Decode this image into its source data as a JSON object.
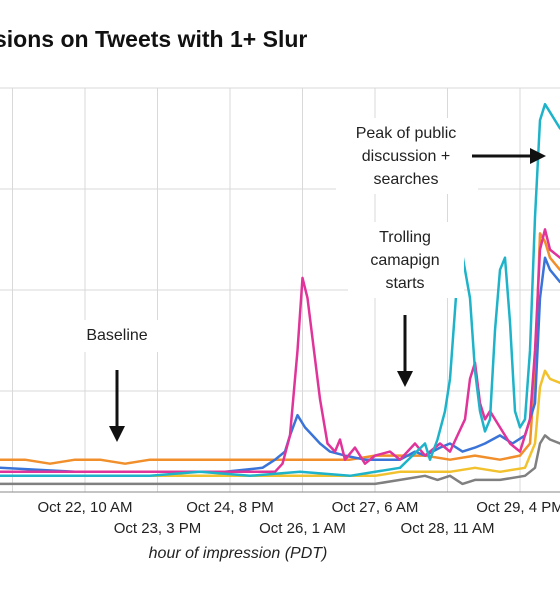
{
  "title": "sions on Tweets with 1+ Slur",
  "chart_data": {
    "type": "line",
    "xlabel": "hour of impression (PDT)",
    "ylabel": "",
    "x_ticks_row1": [
      "Oct 22, 10 AM",
      "Oct 24, 8 PM",
      "Oct 27, 6 AM",
      "Oct 29, 4 PM"
    ],
    "x_ticks_row2": [
      "Oct 23, 3 PM",
      "Oct 26, 1 AM",
      "Oct 28, 11 AM"
    ],
    "x_tick_hours": {
      "row1": [
        34,
        92,
        150,
        208
      ],
      "row2": [
        63,
        121,
        179
      ]
    },
    "xlim_hours": [
      0,
      224
    ],
    "ylim": [
      0,
      100
    ],
    "grid": true,
    "colors": {
      "teal": "#1fb3c9",
      "magenta": "#e0349a",
      "blue": "#3a74d8",
      "orange": "#f08f2b",
      "yellow": "#f2c12e",
      "gray": "#808080"
    },
    "annotations": [
      {
        "lines": [
          "Baseline"
        ],
        "arrow": "down"
      },
      {
        "lines": [
          "Trolling",
          "camapign",
          "starts"
        ],
        "arrow": "down"
      },
      {
        "lines": [
          "Peak of public",
          "discussion +",
          "searches"
        ],
        "arrow": "right"
      }
    ],
    "series": [
      {
        "color": "teal",
        "points": [
          [
            0,
            4
          ],
          [
            20,
            4
          ],
          [
            40,
            4
          ],
          [
            60,
            4
          ],
          [
            80,
            5
          ],
          [
            100,
            4
          ],
          [
            120,
            5
          ],
          [
            140,
            4
          ],
          [
            160,
            6
          ],
          [
            165,
            9
          ],
          [
            170,
            12
          ],
          [
            172,
            8
          ],
          [
            175,
            13
          ],
          [
            178,
            20
          ],
          [
            180,
            28
          ],
          [
            182,
            45
          ],
          [
            184,
            62
          ],
          [
            186,
            55
          ],
          [
            188,
            48
          ],
          [
            190,
            30
          ],
          [
            192,
            20
          ],
          [
            194,
            15
          ],
          [
            196,
            18
          ],
          [
            198,
            40
          ],
          [
            200,
            55
          ],
          [
            202,
            58
          ],
          [
            204,
            42
          ],
          [
            206,
            20
          ],
          [
            208,
            16
          ],
          [
            210,
            18
          ],
          [
            212,
            35
          ],
          [
            214,
            68
          ],
          [
            216,
            92
          ],
          [
            218,
            96
          ],
          [
            220,
            94
          ],
          [
            224,
            90
          ]
        ]
      },
      {
        "color": "magenta",
        "points": [
          [
            0,
            5
          ],
          [
            30,
            5
          ],
          [
            60,
            5
          ],
          [
            88,
            5
          ],
          [
            100,
            5
          ],
          [
            110,
            5
          ],
          [
            113,
            7
          ],
          [
            116,
            14
          ],
          [
            119,
            35
          ],
          [
            121,
            53
          ],
          [
            123,
            48
          ],
          [
            125,
            38
          ],
          [
            128,
            23
          ],
          [
            131,
            12
          ],
          [
            134,
            10
          ],
          [
            136,
            13
          ],
          [
            138,
            8
          ],
          [
            142,
            11
          ],
          [
            146,
            7
          ],
          [
            150,
            9
          ],
          [
            156,
            10
          ],
          [
            160,
            8
          ],
          [
            166,
            12
          ],
          [
            170,
            9
          ],
          [
            176,
            12
          ],
          [
            180,
            10
          ],
          [
            183,
            14
          ],
          [
            186,
            18
          ],
          [
            188,
            28
          ],
          [
            190,
            32
          ],
          [
            192,
            22
          ],
          [
            194,
            18
          ],
          [
            196,
            20
          ],
          [
            200,
            16
          ],
          [
            204,
            12
          ],
          [
            208,
            10
          ],
          [
            212,
            18
          ],
          [
            214,
            35
          ],
          [
            216,
            60
          ],
          [
            218,
            65
          ],
          [
            220,
            60
          ],
          [
            224,
            58
          ]
        ]
      },
      {
        "color": "blue",
        "points": [
          [
            0,
            6
          ],
          [
            30,
            5
          ],
          [
            60,
            5
          ],
          [
            90,
            5
          ],
          [
            105,
            6
          ],
          [
            110,
            8
          ],
          [
            114,
            10
          ],
          [
            116,
            14
          ],
          [
            119,
            19
          ],
          [
            122,
            16
          ],
          [
            125,
            14
          ],
          [
            128,
            12
          ],
          [
            132,
            10
          ],
          [
            138,
            9
          ],
          [
            146,
            8
          ],
          [
            152,
            8
          ],
          [
            160,
            8
          ],
          [
            166,
            10
          ],
          [
            170,
            9
          ],
          [
            176,
            11
          ],
          [
            180,
            12
          ],
          [
            185,
            10
          ],
          [
            190,
            11
          ],
          [
            194,
            12
          ],
          [
            200,
            14
          ],
          [
            205,
            12
          ],
          [
            210,
            14
          ],
          [
            214,
            22
          ],
          [
            216,
            48
          ],
          [
            218,
            58
          ],
          [
            220,
            55
          ],
          [
            224,
            52
          ]
        ]
      },
      {
        "color": "orange",
        "points": [
          [
            0,
            8
          ],
          [
            10,
            8
          ],
          [
            20,
            7
          ],
          [
            30,
            8
          ],
          [
            40,
            8
          ],
          [
            50,
            7
          ],
          [
            60,
            8
          ],
          [
            70,
            8
          ],
          [
            80,
            8
          ],
          [
            90,
            8
          ],
          [
            100,
            8
          ],
          [
            110,
            8
          ],
          [
            120,
            8
          ],
          [
            130,
            8
          ],
          [
            140,
            8
          ],
          [
            150,
            9
          ],
          [
            160,
            9
          ],
          [
            170,
            9
          ],
          [
            180,
            8
          ],
          [
            190,
            9
          ],
          [
            200,
            8
          ],
          [
            208,
            9
          ],
          [
            212,
            12
          ],
          [
            214,
            30
          ],
          [
            216,
            64
          ],
          [
            218,
            62
          ],
          [
            220,
            58
          ],
          [
            224,
            55
          ]
        ]
      },
      {
        "color": "yellow",
        "points": [
          [
            0,
            4
          ],
          [
            40,
            4
          ],
          [
            80,
            4
          ],
          [
            120,
            4
          ],
          [
            150,
            4
          ],
          [
            160,
            5
          ],
          [
            170,
            5
          ],
          [
            180,
            5
          ],
          [
            190,
            6
          ],
          [
            200,
            5
          ],
          [
            210,
            6
          ],
          [
            214,
            12
          ],
          [
            216,
            26
          ],
          [
            218,
            30
          ],
          [
            220,
            28
          ],
          [
            224,
            27
          ]
        ]
      },
      {
        "color": "gray",
        "points": [
          [
            0,
            2
          ],
          [
            40,
            2
          ],
          [
            80,
            2
          ],
          [
            120,
            2
          ],
          [
            150,
            2
          ],
          [
            160,
            3
          ],
          [
            170,
            4
          ],
          [
            175,
            3
          ],
          [
            180,
            4
          ],
          [
            185,
            2
          ],
          [
            190,
            3
          ],
          [
            200,
            3
          ],
          [
            210,
            4
          ],
          [
            214,
            6
          ],
          [
            216,
            12
          ],
          [
            218,
            14
          ],
          [
            220,
            13
          ],
          [
            224,
            12
          ]
        ]
      }
    ]
  }
}
